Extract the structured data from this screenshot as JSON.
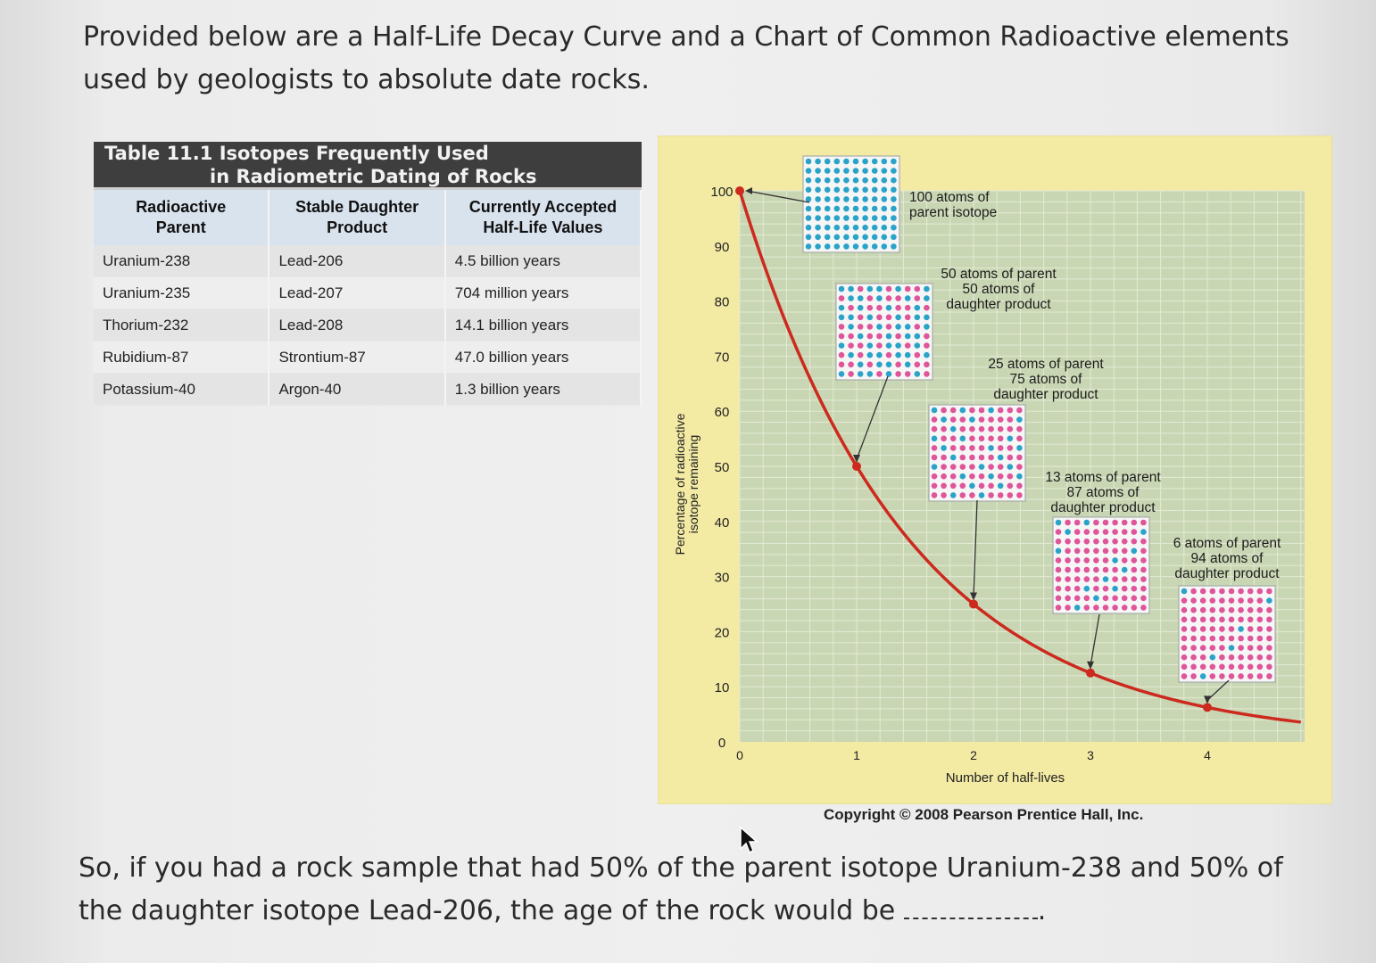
{
  "intro_text": "Provided below are a Half-Life Decay Curve and a Chart of Common Radioactive elements used by geologists to absolute date rocks.",
  "table": {
    "title_line1": "Table 11.1 Isotopes Frequently Used",
    "title_line2": "in Radiometric Dating of Rocks",
    "headers": [
      [
        "Radioactive",
        "Parent"
      ],
      [
        "Stable Daughter",
        "Product"
      ],
      [
        "Currently Accepted",
        "Half-Life Values"
      ]
    ],
    "rows": [
      [
        "Uranium-238",
        "Lead-206",
        "4.5 billion years"
      ],
      [
        "Uranium-235",
        "Lead-207",
        "704 million years"
      ],
      [
        "Thorium-232",
        "Lead-208",
        "14.1 billion years"
      ],
      [
        "Rubidium-87",
        "Strontium-87",
        "47.0 billion years"
      ],
      [
        "Potassium-40",
        "Argon-40",
        "1.3 billion years"
      ]
    ]
  },
  "chart_data": {
    "type": "line",
    "ylabel_line1": "Percentage of radioactive",
    "ylabel_line2": "isotope remaining",
    "xlabel": "Number of half-lives",
    "ylim": [
      0,
      100
    ],
    "xlim": [
      0,
      4.8
    ],
    "y_ticks": [
      0,
      10,
      20,
      30,
      40,
      50,
      60,
      70,
      80,
      90,
      100
    ],
    "x_ticks": [
      0,
      1,
      2,
      3,
      4
    ],
    "series": [
      {
        "points": [
          [
            0,
            100
          ],
          [
            1,
            50
          ],
          [
            2,
            25
          ],
          [
            3,
            12.5
          ],
          [
            4,
            6.25
          ]
        ]
      }
    ],
    "annotations": [
      {
        "x": 0,
        "y": 100,
        "text": [
          "100 atoms of",
          "parent isotope"
        ],
        "parent": 100
      },
      {
        "x": 1,
        "y": 50,
        "text": [
          "50 atoms of parent",
          "50 atoms of",
          "daughter product"
        ],
        "parent": 50
      },
      {
        "x": 2,
        "y": 25,
        "text": [
          "25 atoms of parent",
          "75 atoms of",
          "daughter product"
        ],
        "parent": 25
      },
      {
        "x": 3,
        "y": 12.5,
        "text": [
          "13 atoms of parent",
          "87 atoms of",
          "daughter product"
        ],
        "parent": 13
      },
      {
        "x": 4,
        "y": 6.25,
        "text": [
          "6 atoms of parent",
          "94 atoms of",
          "daughter product"
        ],
        "parent": 6
      }
    ],
    "colors": {
      "curve": "#cc2a1e",
      "parent_dot": "#2aa3c9",
      "daughter_dot": "#e0559a",
      "plot_bg": "#c9d6b3",
      "frame_bg": "#f3eaa4"
    }
  },
  "copyright": "Copyright © 2008 Pearson Prentice Hall, Inc.",
  "question": {
    "text": "So, if you had a rock sample that had 50% of the parent isotope Uranium-238 and 50% of the daughter isotope Lead-206, the age of the rock would be",
    "end": "."
  }
}
